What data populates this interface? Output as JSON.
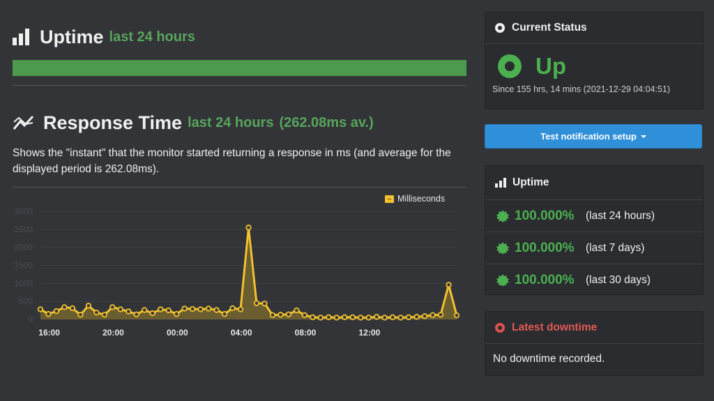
{
  "uptime_section": {
    "title": "Uptime",
    "period": "last 24 hours",
    "icon": "bar-chart-icon",
    "bar_color": "#4c9a4d",
    "uptime_fraction": 1.0
  },
  "response_section": {
    "title": "Response Time",
    "period": "last 24 hours",
    "average": "(262.08ms av.)",
    "icon": "line-chart-icon",
    "description": "Shows the \"instant\" that the monitor started returning a response in ms (and average for the displayed period is 262.08ms)."
  },
  "chart_data": {
    "type": "area",
    "legend": [
      "Milliseconds"
    ],
    "legend_placement": "top-right",
    "grid": true,
    "yticks": [
      "0",
      "500",
      "1000",
      "1500",
      "2000",
      "2500",
      "3000"
    ],
    "ylim": [
      0,
      3000
    ],
    "xticks": [
      "16:00",
      "20:00",
      "00:00",
      "04:00",
      "08:00",
      "12:00"
    ],
    "series": [
      {
        "name": "Milliseconds",
        "color": "#f2c230",
        "values": [
          280,
          150,
          230,
          340,
          310,
          130,
          380,
          190,
          130,
          340,
          280,
          220,
          140,
          260,
          170,
          280,
          250,
          150,
          300,
          290,
          280,
          300,
          260,
          150,
          310,
          280,
          2550,
          450,
          440,
          120,
          130,
          140,
          250,
          120,
          60,
          50,
          60,
          50,
          60,
          60,
          50,
          50,
          70,
          50,
          60,
          50,
          60,
          70,
          90,
          120,
          130,
          960,
          110
        ]
      }
    ]
  },
  "current_status": {
    "header": "Current Status",
    "status": "Up",
    "since": "Since 155 hrs, 14 mins (2021-12-29 04:04:51)",
    "status_color": "#4caf50"
  },
  "notification_button": {
    "label": "Test notification setup"
  },
  "uptime_card": {
    "header": "Uptime",
    "rows": [
      {
        "value": "100.000%",
        "period": "(last 24 hours)"
      },
      {
        "value": "100.000%",
        "period": "(last 7 days)"
      },
      {
        "value": "100.000%",
        "period": "(last 30 days)"
      }
    ]
  },
  "downtime_card": {
    "header": "Latest downtime",
    "header_color": "#e05a55",
    "message": "No downtime recorded."
  }
}
